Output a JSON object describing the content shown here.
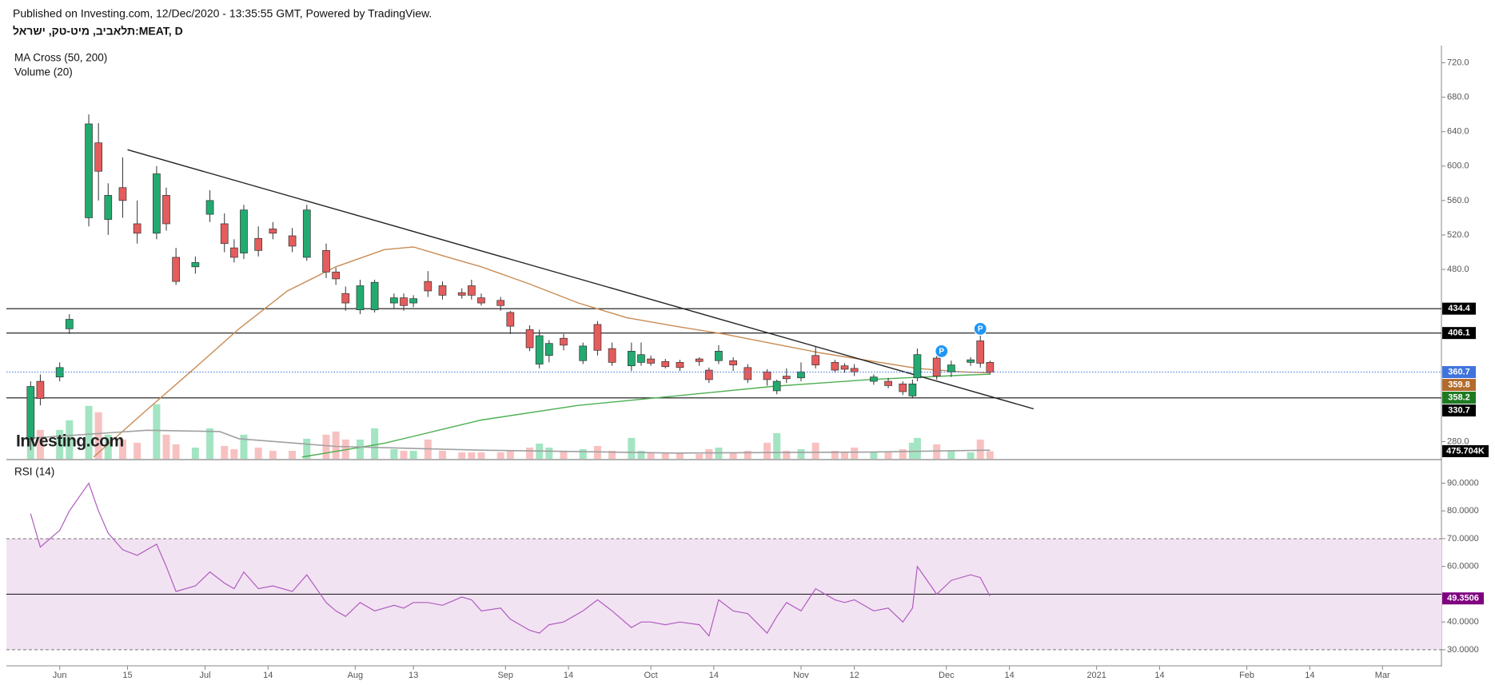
{
  "header": {
    "published": "Published on Investing.com, 12/Dec/2020 - 13:35:55 GMT, Powered by TradingView.",
    "symbol": "תלאביב, מיט-טק, ישראל:MEAT, D",
    "logo": "Investing.com"
  },
  "chart_data": [
    {
      "type": "candlestick",
      "legend": [
        "MA Cross (50, 200)",
        "Volume (20)"
      ],
      "x": [
        "2020-05-26",
        "2020-05-28",
        "2020-06-01",
        "2020-06-03",
        "2020-06-07",
        "2020-06-09",
        "2020-06-11",
        "2020-06-14",
        "2020-06-17",
        "2020-06-21",
        "2020-06-23",
        "2020-06-25",
        "2020-06-29",
        "2020-07-02",
        "2020-07-05",
        "2020-07-07",
        "2020-07-09",
        "2020-07-12",
        "2020-07-15",
        "2020-07-19",
        "2020-07-22",
        "2020-07-26",
        "2020-07-28",
        "2020-07-30",
        "2020-08-02",
        "2020-08-05",
        "2020-08-09",
        "2020-08-11",
        "2020-08-13",
        "2020-08-16",
        "2020-08-19",
        "2020-08-23",
        "2020-08-25",
        "2020-08-27",
        "2020-08-31",
        "2020-09-02",
        "2020-09-06",
        "2020-09-08",
        "2020-09-10",
        "2020-09-13",
        "2020-09-17",
        "2020-09-20",
        "2020-09-23",
        "2020-09-27",
        "2020-09-29",
        "2020-10-01",
        "2020-10-04",
        "2020-10-07",
        "2020-10-11",
        "2020-10-13",
        "2020-10-15",
        "2020-10-18",
        "2020-10-21",
        "2020-10-25",
        "2020-10-27",
        "2020-10-29",
        "2020-11-01",
        "2020-11-04",
        "2020-11-08",
        "2020-11-10",
        "2020-11-12",
        "2020-11-16",
        "2020-11-19",
        "2020-11-22",
        "2020-11-24",
        "2020-11-25",
        "2020-11-29",
        "2020-12-02",
        "2020-12-06",
        "2020-12-08",
        "2020-12-10"
      ],
      "open": [
        283,
        350,
        355,
        411,
        540,
        627,
        538,
        575,
        533,
        522,
        566,
        494,
        483,
        544,
        533,
        505,
        499,
        516,
        527,
        519,
        494,
        502,
        477,
        452,
        433,
        433,
        441,
        447,
        441,
        466,
        461,
        453,
        461,
        447,
        444,
        430,
        410,
        370,
        380,
        400,
        374,
        416,
        388,
        368,
        372,
        376,
        373,
        372,
        376,
        363,
        374,
        374,
        366,
        361,
        339,
        356,
        354,
        380,
        372,
        368,
        365,
        350,
        350,
        347,
        333,
        354,
        377,
        361,
        372,
        397,
        372
      ],
      "high": [
        350,
        358,
        372,
        428,
        660,
        650,
        580,
        610,
        560,
        600,
        575,
        505,
        495,
        572,
        545,
        515,
        555,
        530,
        535,
        528,
        555,
        510,
        482,
        460,
        468,
        468,
        452,
        452,
        450,
        478,
        466,
        458,
        468,
        452,
        448,
        432,
        415,
        410,
        398,
        405,
        395,
        420,
        395,
        395,
        395,
        380,
        376,
        375,
        378,
        366,
        392,
        378,
        370,
        364,
        352,
        365,
        372,
        390,
        375,
        371,
        370,
        358,
        354,
        350,
        352,
        388,
        390,
        374,
        378,
        406,
        374
      ],
      "low": [
        270,
        322,
        350,
        405,
        530,
        560,
        520,
        540,
        510,
        515,
        525,
        462,
        475,
        535,
        500,
        488,
        492,
        495,
        515,
        500,
        490,
        470,
        462,
        432,
        428,
        430,
        435,
        432,
        436,
        448,
        445,
        446,
        445,
        438,
        432,
        405,
        385,
        365,
        372,
        386,
        370,
        380,
        368,
        362,
        368,
        368,
        365,
        362,
        368,
        348,
        370,
        362,
        348,
        345,
        335,
        348,
        350,
        365,
        360,
        360,
        356,
        346,
        342,
        334,
        330,
        350,
        352,
        355,
        368,
        366,
        358
      ],
      "close": [
        344,
        330,
        366,
        422,
        649,
        594,
        566,
        560,
        522,
        591,
        533,
        466,
        488,
        560,
        510,
        494,
        549,
        502,
        522,
        507,
        549,
        477,
        469,
        441,
        461,
        465,
        447,
        438,
        446,
        455,
        450,
        450,
        450,
        441,
        438,
        414,
        389,
        403,
        394,
        392,
        391,
        386,
        372,
        385,
        381,
        371,
        367,
        366,
        373,
        352,
        385,
        369,
        352,
        352,
        350,
        353,
        361,
        369,
        363,
        364,
        361,
        355,
        345,
        338,
        347,
        381,
        356,
        369,
        375,
        371,
        360.7
      ],
      "volume": [
        3450000,
        1800000,
        1800000,
        2400000,
        3300000,
        2900000,
        1500000,
        1200000,
        1000000,
        3400000,
        1500000,
        900000,
        700000,
        1900000,
        800000,
        600000,
        1500000,
        700000,
        500000,
        500000,
        1250000,
        1500000,
        1700000,
        1200000,
        1200000,
        1900000,
        600000,
        500000,
        500000,
        1200000,
        500000,
        400000,
        400000,
        400000,
        400000,
        500000,
        700000,
        950000,
        700000,
        500000,
        600000,
        800000,
        500000,
        1300000,
        500000,
        350000,
        350000,
        350000,
        300000,
        600000,
        700000,
        400000,
        500000,
        1000000,
        1600000,
        500000,
        600000,
        1000000,
        500000,
        400000,
        700000,
        400000,
        400000,
        600000,
        1000000,
        1300000,
        900000,
        500000,
        400000,
        1200000,
        475704
      ],
      "volume_last_label": "475.704K",
      "up_color": "#22ab70",
      "down_color": "#e55c5c",
      "volume_up_color": "#a3e4c3",
      "volume_down_color": "#f8c1c1",
      "xlim": [
        "2020-05-21",
        "2021-03-13"
      ],
      "xticks": [
        {
          "value": "2020-06-01",
          "label": "Jun"
        },
        {
          "value": "2020-06-15",
          "label": "15"
        },
        {
          "value": "2020-07-01",
          "label": "Jul"
        },
        {
          "value": "2020-07-14",
          "label": "14"
        },
        {
          "value": "2020-08-01",
          "label": "Aug"
        },
        {
          "value": "2020-08-13",
          "label": "13"
        },
        {
          "value": "2020-09-01",
          "label": "Sep"
        },
        {
          "value": "2020-09-14",
          "label": "14"
        },
        {
          "value": "2020-10-01",
          "label": "Oct"
        },
        {
          "value": "2020-10-14",
          "label": "14"
        },
        {
          "value": "2020-11-01",
          "label": "Nov"
        },
        {
          "value": "2020-11-12",
          "label": "12"
        },
        {
          "value": "2020-12-01",
          "label": "Dec"
        },
        {
          "value": "2020-12-14",
          "label": "14"
        },
        {
          "value": "2021-01-01",
          "label": "2021"
        },
        {
          "value": "2021-01-14",
          "label": "14"
        },
        {
          "value": "2021-02-01",
          "label": "Feb"
        },
        {
          "value": "2021-02-14",
          "label": "14"
        },
        {
          "value": "2021-03-01",
          "label": "Mar"
        }
      ],
      "ylim": [
        260,
        740
      ],
      "yticks": [
        {
          "value": 720,
          "label": "720.0"
        },
        {
          "value": 680,
          "label": "680.0"
        },
        {
          "value": 640,
          "label": "640.0"
        },
        {
          "value": 600,
          "label": "600.0"
        },
        {
          "value": 560,
          "label": "560.0"
        },
        {
          "value": 520,
          "label": "520.0"
        },
        {
          "value": 480,
          "label": "480.0"
        },
        {
          "value": 280,
          "label": "280.0"
        }
      ],
      "volume_ylim": [
        0,
        25750000
      ],
      "overlays": [
        {
          "color": "#c98b52",
          "x": [
            "2020-06-08",
            "2020-06-10",
            "2020-06-19",
            "2020-06-28",
            "2020-07-08",
            "2020-07-18",
            "2020-07-28",
            "2020-08-07",
            "2020-08-13",
            "2020-08-19",
            "2020-08-27",
            "2020-09-06",
            "2020-09-16",
            "2020-09-26",
            "2020-10-06",
            "2020-10-16",
            "2020-10-26",
            "2020-11-05",
            "2020-11-15",
            "2020-11-25",
            "2020-12-04",
            "2020-12-10"
          ],
          "values": [
            262,
            272,
            317,
            361,
            411,
            455,
            483,
            503,
            506,
            496,
            483,
            463,
            441,
            424,
            414,
            405,
            394,
            383,
            374,
            365,
            361,
            359.8
          ]
        },
        {
          "color": "#4caf50",
          "x": [
            "2020-07-21",
            "2020-08-07",
            "2020-08-27",
            "2020-09-16",
            "2020-10-06",
            "2020-10-26",
            "2020-11-15",
            "2020-12-04",
            "2020-12-10"
          ],
          "values": [
            262,
            278,
            305,
            322,
            333,
            344,
            352,
            357,
            358.2
          ]
        },
        {
          "color": "#a0a0a0",
          "axis": "volume",
          "x": [
            "2020-05-24",
            "2020-06-19",
            "2020-07-04",
            "2020-07-08",
            "2020-07-28",
            "2020-08-27",
            "2020-10-06",
            "2020-11-15",
            "2020-12-10"
          ],
          "values": [
            1250000,
            1780000,
            1700000,
            1250000,
            770000,
            540000,
            360000,
            420000,
            540000
          ]
        },
        {
          "color": "#222222",
          "x": [
            "2020-06-15",
            "2020-12-19"
          ],
          "values": [
            619,
            318
          ]
        }
      ],
      "levels": [
        434.4,
        406.1,
        330.7
      ],
      "last_price_color": "#3f74dc",
      "markers": [
        {
          "x": "2020-11-30",
          "y": 385,
          "label": "P"
        },
        {
          "x": "2020-12-08",
          "y": 411,
          "label": "P"
        }
      ]
    },
    {
      "type": "line",
      "legend": [
        "RSI (14)"
      ],
      "x": [
        "2020-05-26",
        "2020-05-28",
        "2020-06-01",
        "2020-06-03",
        "2020-06-07",
        "2020-06-09",
        "2020-06-11",
        "2020-06-14",
        "2020-06-17",
        "2020-06-21",
        "2020-06-23",
        "2020-06-25",
        "2020-06-29",
        "2020-07-02",
        "2020-07-05",
        "2020-07-07",
        "2020-07-09",
        "2020-07-12",
        "2020-07-15",
        "2020-07-19",
        "2020-07-22",
        "2020-07-26",
        "2020-07-28",
        "2020-07-30",
        "2020-08-02",
        "2020-08-05",
        "2020-08-09",
        "2020-08-11",
        "2020-08-13",
        "2020-08-16",
        "2020-08-19",
        "2020-08-23",
        "2020-08-25",
        "2020-08-27",
        "2020-08-31",
        "2020-09-02",
        "2020-09-06",
        "2020-09-08",
        "2020-09-10",
        "2020-09-13",
        "2020-09-17",
        "2020-09-20",
        "2020-09-23",
        "2020-09-27",
        "2020-09-29",
        "2020-10-01",
        "2020-10-04",
        "2020-10-07",
        "2020-10-11",
        "2020-10-13",
        "2020-10-15",
        "2020-10-18",
        "2020-10-21",
        "2020-10-25",
        "2020-10-27",
        "2020-10-29",
        "2020-11-01",
        "2020-11-04",
        "2020-11-08",
        "2020-11-10",
        "2020-11-12",
        "2020-11-16",
        "2020-11-19",
        "2020-11-22",
        "2020-11-24",
        "2020-11-25",
        "2020-11-29",
        "2020-12-02",
        "2020-12-06",
        "2020-12-08",
        "2020-12-10"
      ],
      "values": [
        79,
        67,
        73,
        80,
        90,
        80,
        72,
        66,
        64,
        68,
        60,
        51,
        53,
        58,
        54,
        52,
        58,
        52,
        53,
        51,
        57,
        47,
        44,
        42,
        47,
        44,
        46,
        45,
        47,
        47,
        46,
        49,
        48,
        44,
        45,
        41,
        37,
        36,
        39,
        40,
        44,
        48,
        44,
        38,
        40,
        40,
        39,
        40,
        39,
        35,
        48,
        44,
        43,
        36,
        42,
        47,
        44,
        52,
        48,
        47,
        48,
        44,
        45,
        40,
        45,
        60,
        50,
        55,
        57,
        56,
        49.3506
      ],
      "color": "#b05cc0",
      "label_color": "#800080",
      "ylim": [
        24.5,
        98.2
      ],
      "yticks": [
        {
          "value": 90,
          "label": "90.0000"
        },
        {
          "value": 80,
          "label": "80.0000"
        },
        {
          "value": 70,
          "label": "70.0000"
        },
        {
          "value": 60,
          "label": "60.0000"
        },
        {
          "value": 40,
          "label": "40.0000"
        },
        {
          "value": 30,
          "label": "30.0000"
        }
      ],
      "band": [
        30,
        70
      ],
      "band_color": "#f2e3f2",
      "midline": 50
    }
  ]
}
